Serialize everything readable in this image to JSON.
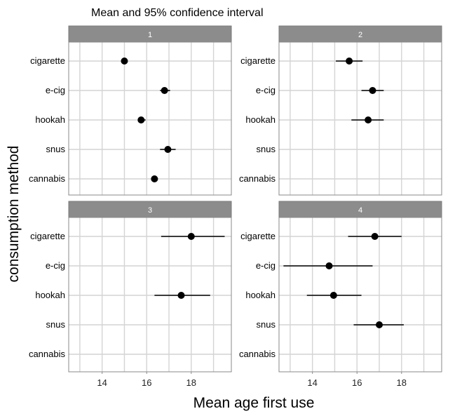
{
  "chart_data": {
    "type": "scatter",
    "title": "Mean and 95% confidence interval",
    "xlabel": "Mean age first use",
    "ylabel": "consumption method",
    "xlim": [
      12.5,
      19.8
    ],
    "xticks": [
      14,
      16,
      18
    ],
    "categories": [
      "cigarette",
      "e-cig",
      "hookah",
      "snus",
      "cannabis"
    ],
    "grid": true,
    "panels": [
      {
        "label": "1",
        "points": [
          {
            "category": "cigarette",
            "mean": 15.0,
            "low": 14.85,
            "high": 15.15
          },
          {
            "category": "e-cig",
            "mean": 16.8,
            "low": 16.6,
            "high": 17.05
          },
          {
            "category": "hookah",
            "mean": 15.75,
            "low": 15.6,
            "high": 15.95
          },
          {
            "category": "snus",
            "mean": 16.95,
            "low": 16.6,
            "high": 17.3
          },
          {
            "category": "cannabis",
            "mean": 16.35,
            "low": 16.2,
            "high": 16.5
          }
        ]
      },
      {
        "label": "2",
        "points": [
          {
            "category": "cigarette",
            "mean": 15.65,
            "low": 15.05,
            "high": 16.25
          },
          {
            "category": "e-cig",
            "mean": 16.7,
            "low": 16.2,
            "high": 17.2
          },
          {
            "category": "hookah",
            "mean": 16.5,
            "low": 15.75,
            "high": 17.2
          }
        ]
      },
      {
        "label": "3",
        "points": [
          {
            "category": "cigarette",
            "mean": 18.0,
            "low": 16.65,
            "high": 19.5
          },
          {
            "category": "hookah",
            "mean": 17.55,
            "low": 16.35,
            "high": 18.85
          }
        ]
      },
      {
        "label": "4",
        "points": [
          {
            "category": "cigarette",
            "mean": 16.8,
            "low": 15.6,
            "high": 18.0
          },
          {
            "category": "e-cig",
            "mean": 14.75,
            "low": 12.7,
            "high": 16.7
          },
          {
            "category": "hookah",
            "mean": 14.95,
            "low": 13.75,
            "high": 16.2
          },
          {
            "category": "snus",
            "mean": 17.0,
            "low": 15.85,
            "high": 18.1
          }
        ]
      }
    ]
  }
}
